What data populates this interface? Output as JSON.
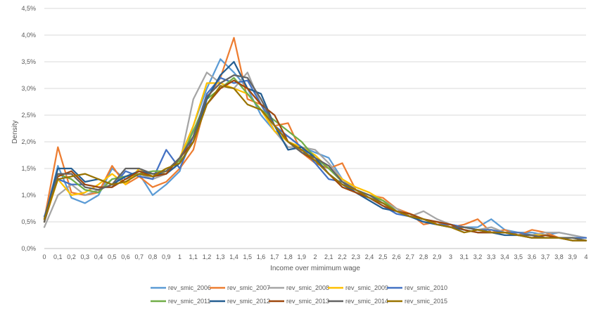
{
  "chart_data": {
    "type": "line",
    "title": "",
    "xlabel": "Income over mimimum wage",
    "ylabel": "Density",
    "xlim": [
      0,
      4
    ],
    "ylim": [
      0,
      4.5
    ],
    "grid": "horizontal",
    "legend_position": "bottom",
    "x_ticks": [
      "0",
      "0,1",
      "0,2",
      "0,3",
      "0,4",
      "0,5",
      "0,6",
      "0,7",
      "0,8",
      "0,9",
      "1",
      "1,1",
      "1,2",
      "1,3",
      "1,4",
      "1,5",
      "1,6",
      "1,7",
      "1,8",
      "1,9",
      "2",
      "2,1",
      "2,2",
      "2,3",
      "2,4",
      "2,5",
      "2,6",
      "2,7",
      "2,8",
      "2,9",
      "3",
      "3,1",
      "3,2",
      "3,3",
      "3,4",
      "3,5",
      "3,6",
      "3,7",
      "3,8",
      "3,9",
      "4"
    ],
    "y_ticks": [
      "0,0%",
      "0,5%",
      "1,0%",
      "1,5%",
      "2,0%",
      "2,5%",
      "3,0%",
      "3,5%",
      "4,0%",
      "4,5%"
    ],
    "x": [
      0,
      0.1,
      0.2,
      0.3,
      0.4,
      0.5,
      0.6,
      0.7,
      0.8,
      0.9,
      1,
      1.1,
      1.2,
      1.3,
      1.4,
      1.5,
      1.6,
      1.7,
      1.8,
      1.9,
      2,
      2.1,
      2.2,
      2.3,
      2.4,
      2.5,
      2.6,
      2.7,
      2.8,
      2.9,
      3,
      3.1,
      3.2,
      3.3,
      3.4,
      3.5,
      3.6,
      3.7,
      3.8,
      3.9,
      4
    ],
    "series": [
      {
        "name": "rev_smic_2006",
        "color": "#5b9bd5",
        "values": [
          0.55,
          1.55,
          0.95,
          0.85,
          1.0,
          1.5,
          1.3,
          1.4,
          1.0,
          1.2,
          1.45,
          2.3,
          3.0,
          3.55,
          3.3,
          3.0,
          2.5,
          2.2,
          2.1,
          1.9,
          1.8,
          1.7,
          1.3,
          1.1,
          0.95,
          0.85,
          0.7,
          0.6,
          0.55,
          0.5,
          0.45,
          0.4,
          0.4,
          0.55,
          0.35,
          0.3,
          0.3,
          0.25,
          0.3,
          0.25,
          0.2
        ]
      },
      {
        "name": "rev_smic_2007",
        "color": "#ed7d31",
        "values": [
          0.55,
          1.9,
          1.05,
          1.0,
          1.05,
          1.55,
          1.2,
          1.35,
          1.15,
          1.25,
          1.5,
          1.85,
          2.8,
          3.2,
          3.95,
          2.8,
          2.7,
          2.3,
          2.35,
          1.8,
          1.6,
          1.5,
          1.6,
          1.1,
          1.0,
          0.95,
          0.75,
          0.65,
          0.45,
          0.5,
          0.4,
          0.45,
          0.55,
          0.3,
          0.35,
          0.25,
          0.35,
          0.3,
          0.2,
          0.2,
          0.15
        ]
      },
      {
        "name": "rev_smic_2008",
        "color": "#a5a5a5",
        "values": [
          0.4,
          1.0,
          1.2,
          1.0,
          1.1,
          1.3,
          1.35,
          1.4,
          1.3,
          1.4,
          1.6,
          2.8,
          3.3,
          3.1,
          3.0,
          3.3,
          2.7,
          2.2,
          1.9,
          1.9,
          1.85,
          1.6,
          1.3,
          1.1,
          1.0,
          0.9,
          0.75,
          0.6,
          0.7,
          0.55,
          0.45,
          0.4,
          0.35,
          0.4,
          0.3,
          0.3,
          0.25,
          0.3,
          0.3,
          0.25,
          0.2
        ]
      },
      {
        "name": "rev_smic_2009",
        "color": "#ffc000",
        "values": [
          0.5,
          1.3,
          1.0,
          1.05,
          1.2,
          1.4,
          1.2,
          1.5,
          1.35,
          1.45,
          1.7,
          2.3,
          3.1,
          3.1,
          3.0,
          2.9,
          2.6,
          2.2,
          2.0,
          1.9,
          1.75,
          1.5,
          1.3,
          1.15,
          1.05,
          0.9,
          0.7,
          0.65,
          0.55,
          0.45,
          0.4,
          0.4,
          0.35,
          0.35,
          0.3,
          0.3,
          0.25,
          0.25,
          0.2,
          0.2,
          0.15
        ]
      },
      {
        "name": "rev_smic_2010",
        "color": "#4472c4",
        "values": [
          0.6,
          1.3,
          1.2,
          1.2,
          1.15,
          1.15,
          1.45,
          1.35,
          1.3,
          1.85,
          1.5,
          2.1,
          2.9,
          3.2,
          3.1,
          3.15,
          2.7,
          2.3,
          2.1,
          1.9,
          1.6,
          1.3,
          1.25,
          1.05,
          0.95,
          0.8,
          0.65,
          0.6,
          0.5,
          0.45,
          0.45,
          0.4,
          0.35,
          0.35,
          0.3,
          0.3,
          0.25,
          0.2,
          0.2,
          0.2,
          0.2
        ]
      },
      {
        "name": "rev_smic_2011",
        "color": "#70ad47",
        "values": [
          0.5,
          1.4,
          1.3,
          1.1,
          1.05,
          1.3,
          1.35,
          1.4,
          1.45,
          1.45,
          1.65,
          2.2,
          2.8,
          3.0,
          3.2,
          2.9,
          2.6,
          2.4,
          2.2,
          2.0,
          1.7,
          1.5,
          1.25,
          1.1,
          1.0,
          0.9,
          0.7,
          0.6,
          0.55,
          0.45,
          0.4,
          0.4,
          0.35,
          0.3,
          0.3,
          0.25,
          0.25,
          0.2,
          0.2,
          0.2,
          0.15
        ]
      },
      {
        "name": "rev_smic_2012",
        "color": "#255e91",
        "values": [
          0.55,
          1.5,
          1.5,
          1.25,
          1.3,
          1.2,
          1.35,
          1.45,
          1.4,
          1.4,
          1.6,
          2.0,
          2.8,
          3.25,
          3.5,
          3.0,
          2.9,
          2.3,
          1.85,
          1.9,
          1.7,
          1.4,
          1.2,
          1.05,
          0.9,
          0.75,
          0.7,
          0.6,
          0.5,
          0.45,
          0.4,
          0.35,
          0.3,
          0.3,
          0.25,
          0.25,
          0.2,
          0.2,
          0.2,
          0.15,
          0.15
        ]
      },
      {
        "name": "rev_smic_2013",
        "color": "#9e480e",
        "values": [
          0.5,
          1.35,
          1.45,
          1.2,
          1.15,
          1.15,
          1.3,
          1.45,
          1.35,
          1.4,
          1.7,
          2.0,
          2.7,
          3.0,
          3.15,
          3.0,
          2.7,
          2.5,
          2.0,
          1.8,
          1.65,
          1.4,
          1.15,
          1.05,
          0.95,
          0.8,
          0.7,
          0.65,
          0.55,
          0.5,
          0.45,
          0.35,
          0.3,
          0.3,
          0.3,
          0.25,
          0.2,
          0.25,
          0.2,
          0.15,
          0.15
        ]
      },
      {
        "name": "rev_smic_2014",
        "color": "#636363",
        "values": [
          0.5,
          1.4,
          1.4,
          1.15,
          1.1,
          1.2,
          1.5,
          1.5,
          1.4,
          1.45,
          1.7,
          2.1,
          2.85,
          3.1,
          3.25,
          3.2,
          2.8,
          2.3,
          2.0,
          1.8,
          1.7,
          1.55,
          1.25,
          1.1,
          1.0,
          0.85,
          0.7,
          0.6,
          0.55,
          0.45,
          0.4,
          0.4,
          0.35,
          0.3,
          0.3,
          0.25,
          0.25,
          0.2,
          0.2,
          0.2,
          0.15
        ]
      },
      {
        "name": "rev_smic_2015",
        "color": "#997300",
        "values": [
          0.55,
          1.3,
          1.35,
          1.4,
          1.3,
          1.2,
          1.25,
          1.4,
          1.35,
          1.5,
          1.6,
          2.0,
          2.7,
          3.05,
          3.0,
          2.7,
          2.6,
          2.3,
          2.0,
          1.85,
          1.65,
          1.4,
          1.2,
          1.1,
          0.95,
          0.85,
          0.7,
          0.6,
          0.55,
          0.45,
          0.4,
          0.3,
          0.35,
          0.3,
          0.3,
          0.25,
          0.2,
          0.2,
          0.2,
          0.15,
          0.15
        ]
      }
    ]
  }
}
